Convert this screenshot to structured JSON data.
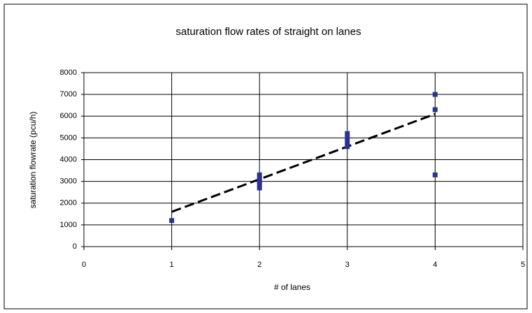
{
  "chart_data": {
    "type": "scatter",
    "title": "saturation flow rates of straight on lanes",
    "x_label": "# of lanes",
    "y_label": "saturation flowrate (pcu/h)",
    "series": [
      {
        "color": "#2e3192",
        "x": [
          1,
          2,
          2,
          2,
          2,
          2,
          3,
          3,
          3,
          3,
          4,
          4,
          4
        ],
        "values": [
          1200,
          2700,
          2900,
          3000,
          3100,
          3300,
          4600,
          4800,
          5000,
          5200,
          7000,
          6300,
          3300
        ]
      }
    ],
    "trendline": {
      "x": [
        1,
        4
      ],
      "values": [
        1600,
        6100
      ],
      "color": "#000000"
    },
    "xlim": [
      0,
      5
    ],
    "xticks": [
      0,
      1,
      2,
      3,
      4,
      5
    ],
    "ylim": [
      0,
      8000
    ],
    "yticks": [
      0,
      1000,
      2000,
      3000,
      4000,
      5000,
      6000,
      7000,
      8000
    ],
    "grid": true
  }
}
